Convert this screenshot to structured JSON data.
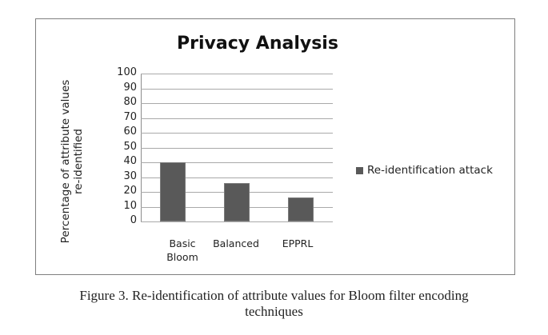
{
  "chart_data": {
    "type": "bar",
    "title": "Privacy Analysis",
    "xlabel": "",
    "ylabel": "Percentage  of attribute values re-identified",
    "categories": [
      "Basic Bloom",
      "Balanced",
      "EPPRL"
    ],
    "series": [
      {
        "name": "Re-identification attack",
        "values": [
          40,
          26,
          16
        ],
        "color": "#595959"
      }
    ],
    "ylim": [
      0,
      100
    ],
    "yticks": [
      0,
      10,
      20,
      30,
      40,
      50,
      60,
      70,
      80,
      90,
      100
    ],
    "grid": true,
    "legend_position": "right"
  },
  "labels": {
    "title": "Privacy Analysis",
    "ylabel_line1": "Percentage  of attribute values",
    "ylabel_line2": "re-identified",
    "cat0_line1": "Basic",
    "cat0_line2": "Bloom",
    "cat1": "Balanced",
    "cat2": "EPPRL",
    "legend": "Re-identification attack"
  },
  "caption": {
    "line1": "Figure 3. Re-identification of attribute values for Bloom filter encoding",
    "line2": "techniques"
  }
}
